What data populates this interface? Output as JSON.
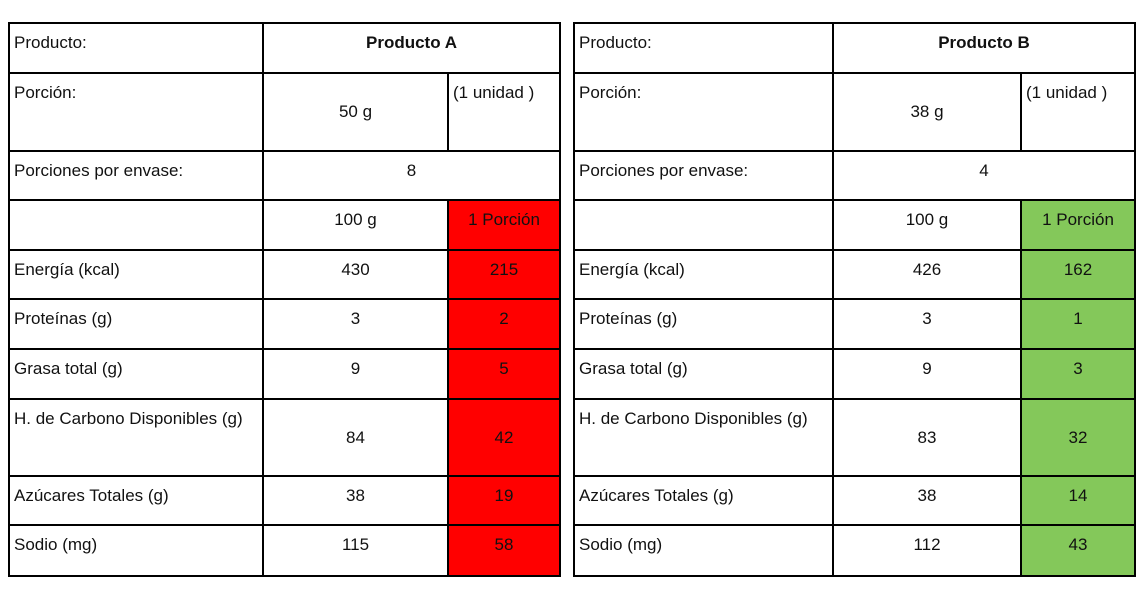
{
  "tables": [
    {
      "product_label": "Producto:",
      "product": "Producto A",
      "serving_label": "Porción:",
      "serving": "50 g",
      "serving_unit": "(1 unidad )",
      "servings_label": "Porciones por envase:",
      "servings": 8,
      "col_100g": "100 g",
      "col_portion": "1 Porción",
      "color": "#ff0000",
      "rows": [
        {
          "label": "Energía (kcal)",
          "per_100g": 430,
          "per_portion": 215
        },
        {
          "label": "Proteínas (g)",
          "per_100g": 3,
          "per_portion": 2
        },
        {
          "label": "Grasa total (g)",
          "per_100g": 9,
          "per_portion": 5
        },
        {
          "label": "H. de Carbono Disponibles (g)",
          "per_100g": 84,
          "per_portion": 42
        },
        {
          "label": "Azúcares Totales (g)",
          "per_100g": 38,
          "per_portion": 19
        },
        {
          "label": "Sodio (mg)",
          "per_100g": 115,
          "per_portion": 58
        }
      ]
    },
    {
      "product_label": "Producto:",
      "product": "Producto B",
      "serving_label": "Porción:",
      "serving": "38 g",
      "serving_unit": "(1 unidad )",
      "servings_label": "Porciones por envase:",
      "servings": 4,
      "col_100g": "100 g",
      "col_portion": "1 Porción",
      "color": "#84c85a",
      "rows": [
        {
          "label": "Energía (kcal)",
          "per_100g": 426,
          "per_portion": 162
        },
        {
          "label": "Proteínas (g)",
          "per_100g": 3,
          "per_portion": 1
        },
        {
          "label": "Grasa total (g)",
          "per_100g": 9,
          "per_portion": 3
        },
        {
          "label": "H. de Carbono Disponibles (g)",
          "per_100g": 83,
          "per_portion": 32
        },
        {
          "label": "Azúcares Totales (g)",
          "per_100g": 38,
          "per_portion": 14
        },
        {
          "label": "Sodio (mg)",
          "per_100g": 112,
          "per_portion": 43
        }
      ]
    }
  ]
}
